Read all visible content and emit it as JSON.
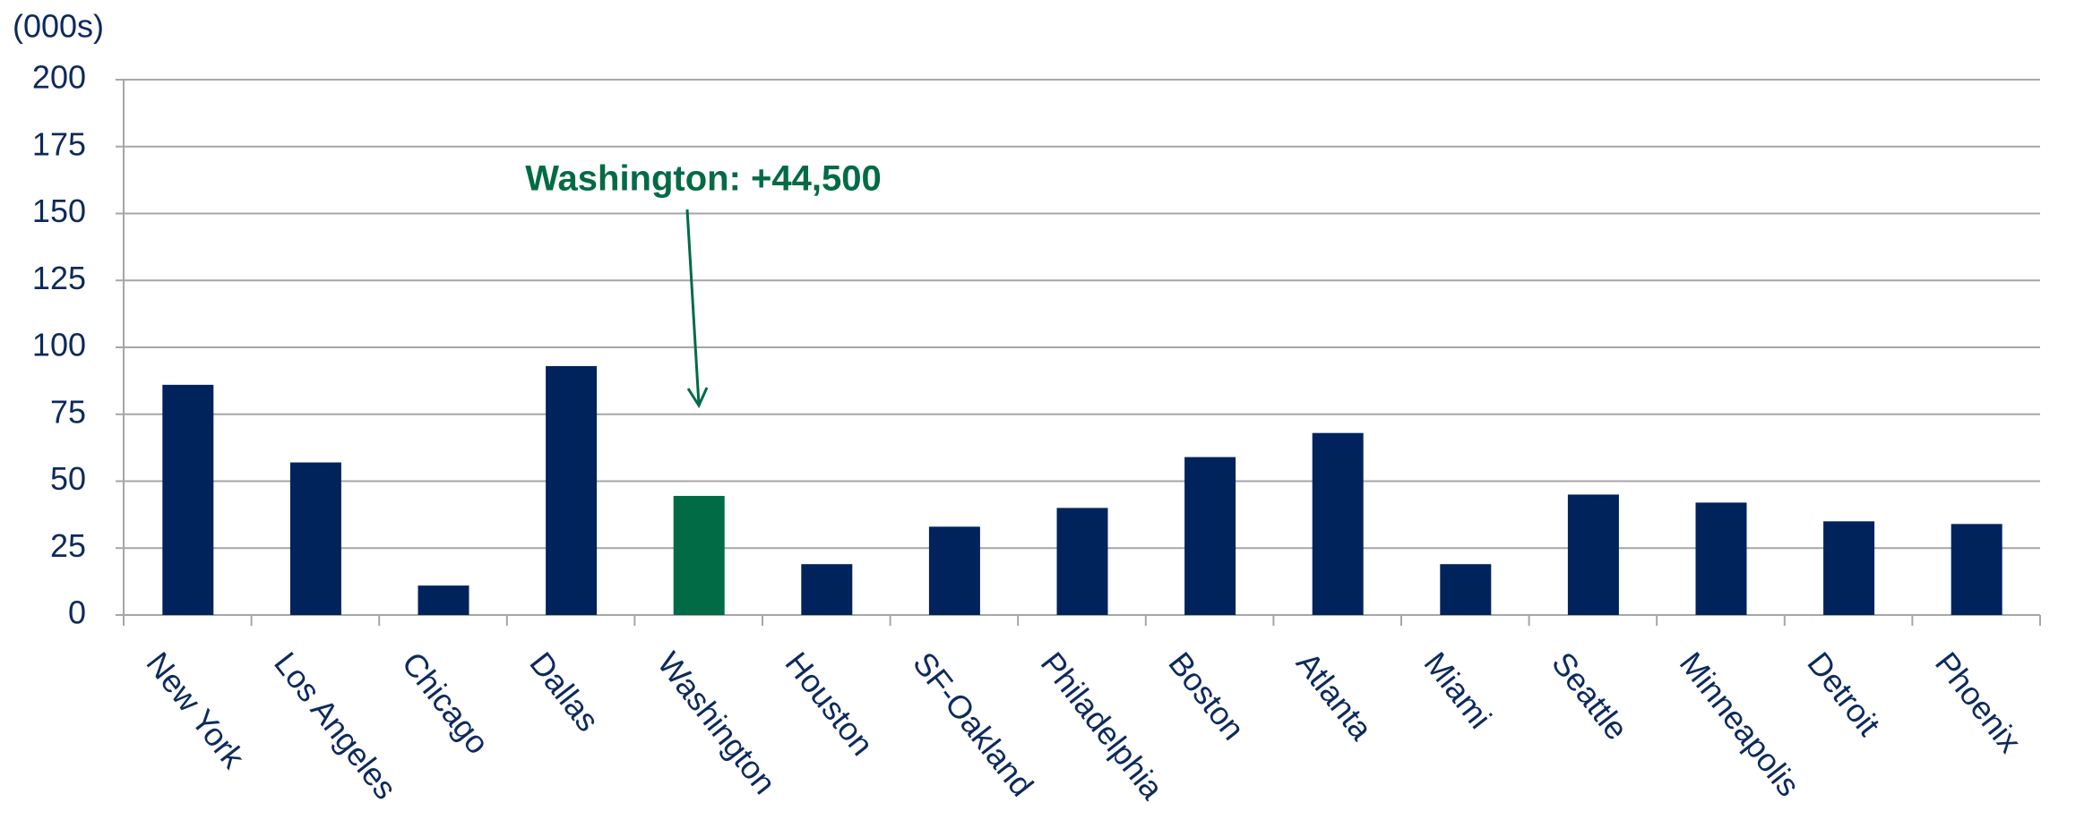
{
  "chart_data": {
    "type": "bar",
    "unit_label": "(000s)",
    "categories": [
      "New York",
      "Los Angeles",
      "Chicago",
      "Dallas",
      "Washington",
      "Houston",
      "SF-Oakland",
      "Philadelphia",
      "Boston",
      "Atlanta",
      "Miami",
      "Seattle",
      "Minneapolis",
      "Detroit",
      "Phoenix"
    ],
    "values": [
      86,
      57,
      11,
      93,
      44.5,
      19,
      33,
      40,
      59,
      68,
      19,
      45,
      42,
      35,
      34
    ],
    "colors": [
      "#00235c",
      "#00235c",
      "#00235c",
      "#00235c",
      "#006b45",
      "#00235c",
      "#00235c",
      "#00235c",
      "#00235c",
      "#00235c",
      "#00235c",
      "#00235c",
      "#00235c",
      "#00235c",
      "#00235c"
    ],
    "ylim": [
      0,
      200
    ],
    "yticks": [
      0,
      25,
      50,
      75,
      100,
      125,
      150,
      175,
      200
    ],
    "grid": true,
    "annotation": {
      "text": "Washington: +44,500",
      "color": "#006b45"
    }
  }
}
